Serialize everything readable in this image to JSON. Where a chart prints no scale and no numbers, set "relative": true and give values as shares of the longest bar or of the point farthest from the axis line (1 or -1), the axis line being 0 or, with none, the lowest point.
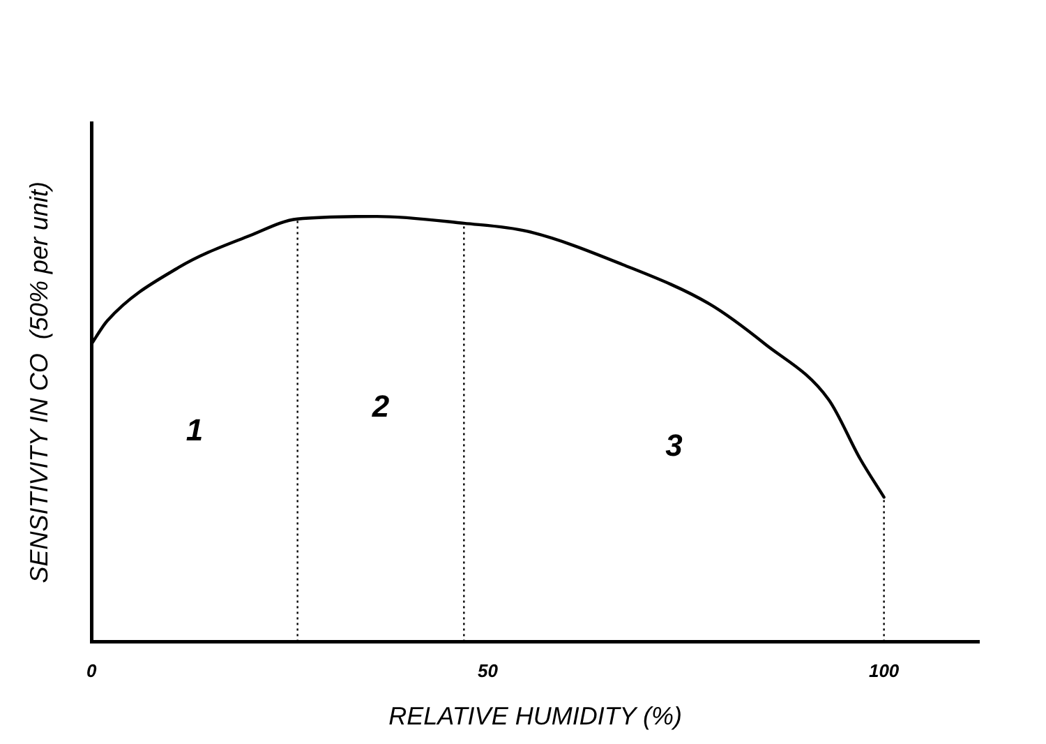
{
  "chart_data": {
    "type": "line",
    "relative": true,
    "xlabel": "RELATIVE HUMIDITY (%)",
    "ylabel": "SENSITIVITY IN CO  (50% per unit)",
    "x": [
      0,
      2,
      11,
      20,
      26,
      36,
      47,
      55,
      67,
      78,
      85,
      93,
      97,
      100
    ],
    "series": [
      {
        "color": "#000000",
        "values": [
          0.7,
          0.755,
          0.88,
          0.955,
          0.994,
          1,
          0.984,
          0.965,
          0.887,
          0.794,
          0.7,
          0.57,
          0.43,
          0.34
        ]
      }
    ],
    "xlim": [
      0,
      112
    ],
    "xticks": [
      0,
      50,
      100
    ],
    "ref_lines": [
      {
        "axis": "x",
        "value": 26,
        "line_style": "dotted"
      },
      {
        "axis": "x",
        "value": 47,
        "line_style": "dotted"
      },
      {
        "axis": "x",
        "value": 100,
        "line_style": "dotted"
      }
    ],
    "annotations": [
      "1",
      "2",
      "3"
    ],
    "grid": false,
    "legend": false,
    "marker": "none",
    "line_style": "solid"
  }
}
